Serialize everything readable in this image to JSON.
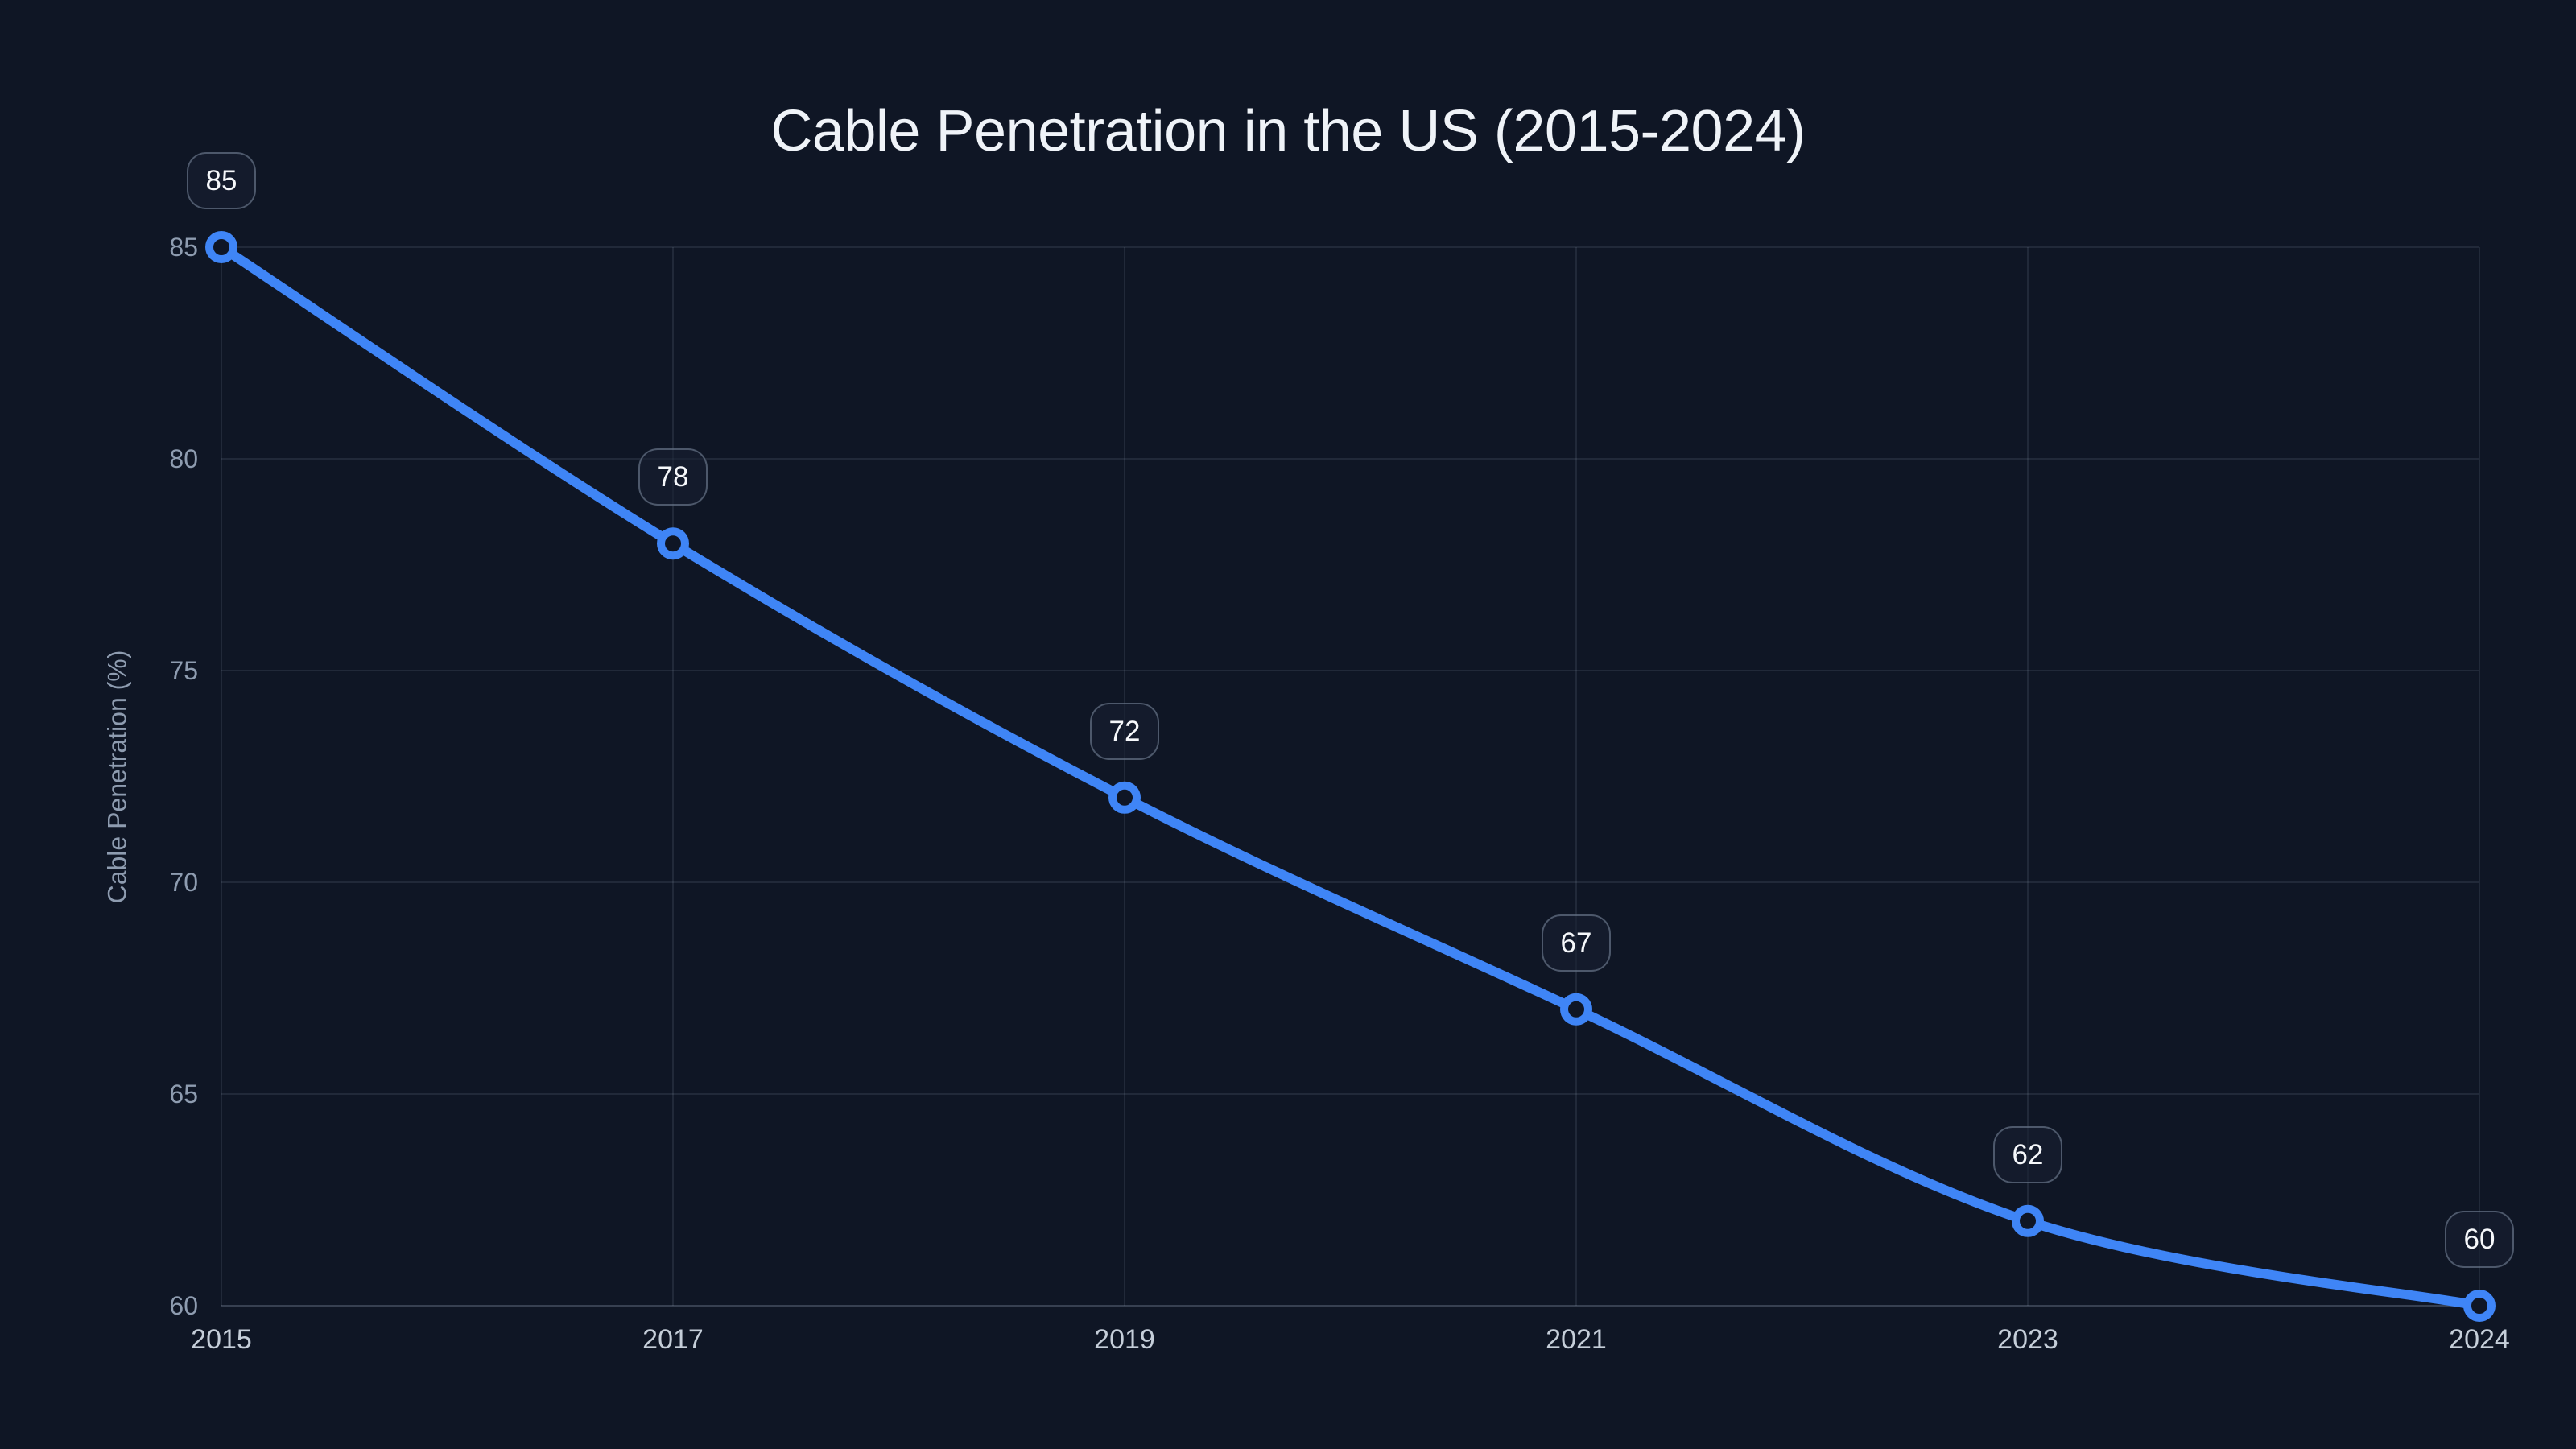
{
  "chart_data": {
    "type": "line",
    "title": "Cable Penetration in the US (2015-2024)",
    "ylabel": "Cable Penetration (%)",
    "xlabel": "",
    "categories": [
      "2015",
      "2017",
      "2019",
      "2021",
      "2023",
      "2024"
    ],
    "series": [
      {
        "name": "Cable Penetration",
        "values": [
          85,
          78,
          72,
          67,
          62,
          60
        ]
      }
    ],
    "point_labels": [
      "85",
      "78",
      "72",
      "67",
      "62",
      "60"
    ],
    "yticks": [
      60,
      65,
      70,
      75,
      80,
      85
    ],
    "ylim": [
      60,
      85
    ],
    "grid": true,
    "legend_position": "none",
    "colors": {
      "background": "#0f1625",
      "line": "#3f85f6",
      "point_fill": "#0f1625",
      "grid": "rgba(148,163,184,0.14)",
      "axis": "rgba(148,163,184,0.30)",
      "y_tick_text": "#8e9cb0",
      "x_tick_text": "#c5ced9",
      "title_text": "#eff3f8",
      "badge_border": "rgba(148,163,184,0.45)",
      "badge_background": "rgba(23,32,50,0.6)",
      "badge_text": "#f6f8fb"
    }
  }
}
